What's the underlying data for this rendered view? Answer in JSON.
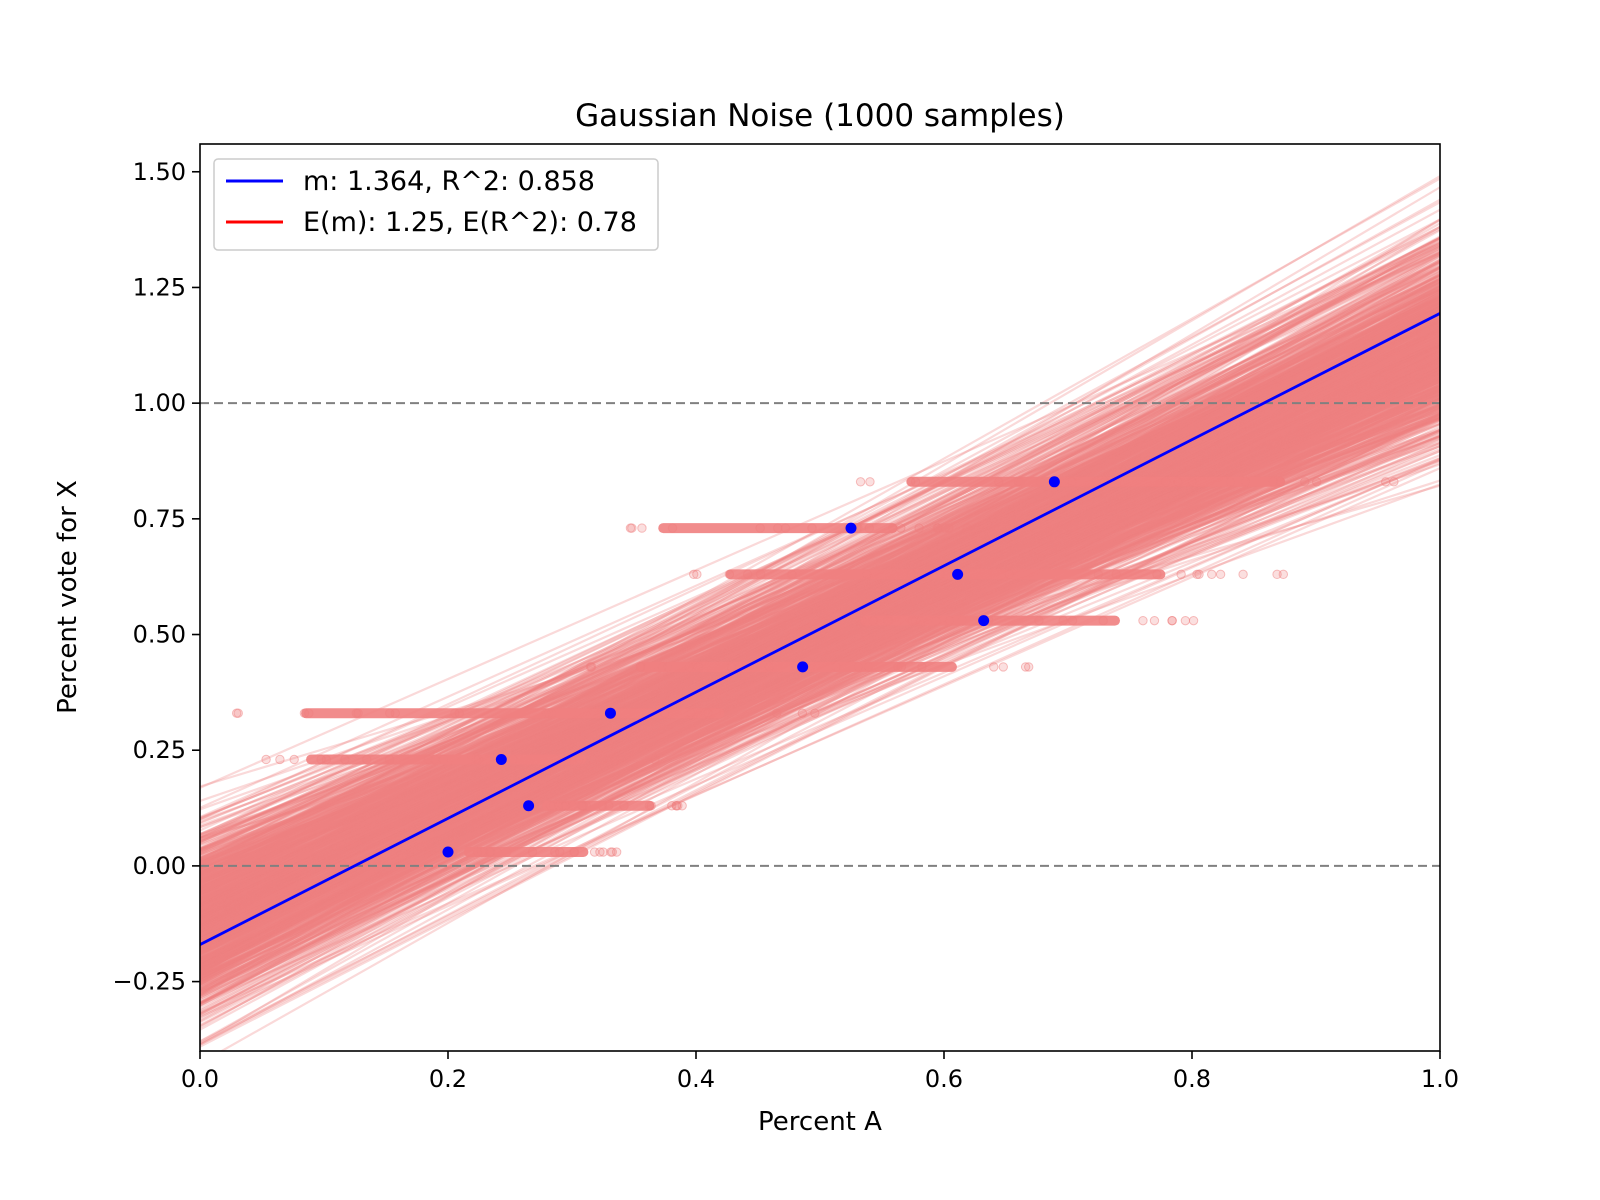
{
  "chart_data": {
    "type": "scatter",
    "title": "Gaussian Noise (1000 samples)",
    "xlabel": "Percent A",
    "ylabel": "Percent vote for X",
    "xlim": [
      0.0,
      1.0
    ],
    "ylim": [
      -0.4,
      1.56
    ],
    "xticks": [
      0.0,
      0.2,
      0.4,
      0.6,
      0.8,
      1.0
    ],
    "xtick_labels": [
      "0.0",
      "0.2",
      "0.4",
      "0.6",
      "0.8",
      "1.0"
    ],
    "yticks": [
      -0.25,
      0.0,
      0.25,
      0.5,
      0.75,
      1.0,
      1.25,
      1.5
    ],
    "ytick_labels": [
      "−0.25",
      "0.00",
      "0.25",
      "0.50",
      "0.75",
      "1.00",
      "1.25",
      "1.50"
    ],
    "grid": false,
    "legend_position": "top-left",
    "colors": {
      "observed": "#0000ff",
      "expected": "#ff0000",
      "samples": "#f08080",
      "reference_line": "#808080"
    },
    "reference_lines": [
      0.0,
      1.0
    ],
    "legend": [
      {
        "label": "m: 1.364, R^2: 0.858",
        "color": "#0000ff"
      },
      {
        "label": "E(m): 1.25, E(R^2): 0.78",
        "color": "#ff0000"
      }
    ],
    "observed_points": [
      {
        "x": 0.2,
        "y": 0.03
      },
      {
        "x": 0.243,
        "y": 0.23
      },
      {
        "x": 0.265,
        "y": 0.13
      },
      {
        "x": 0.331,
        "y": 0.33
      },
      {
        "x": 0.486,
        "y": 0.43
      },
      {
        "x": 0.525,
        "y": 0.73
      },
      {
        "x": 0.611,
        "y": 0.63
      },
      {
        "x": 0.632,
        "y": 0.53
      },
      {
        "x": 0.689,
        "y": 0.83
      }
    ],
    "fit_line": {
      "slope": 1.364,
      "intercept": -0.17
    },
    "sample_fits": {
      "count": 1000,
      "slope_mean": 1.25,
      "slope_range": [
        0.57,
        1.87
      ],
      "pivot": {
        "x": 0.42,
        "y": 0.4
      }
    },
    "sample_point_bands": [
      {
        "y": 0.03,
        "x_range": [
          0.2,
          0.34
        ]
      },
      {
        "y": 0.13,
        "x_range": [
          0.265,
          0.39
        ]
      },
      {
        "y": 0.23,
        "x_range": [
          0.05,
          0.38
        ]
      },
      {
        "y": 0.33,
        "x_range": [
          0.025,
          0.53
        ]
      },
      {
        "y": 0.43,
        "x_range": [
          0.31,
          0.69
        ]
      },
      {
        "y": 0.53,
        "x_range": [
          0.5,
          0.805
        ]
      },
      {
        "y": 0.63,
        "x_range": [
          0.365,
          0.89
        ]
      },
      {
        "y": 0.73,
        "x_range": [
          0.34,
          0.62
        ]
      },
      {
        "y": 0.83,
        "x_range": [
          0.52,
          0.97
        ]
      }
    ]
  }
}
